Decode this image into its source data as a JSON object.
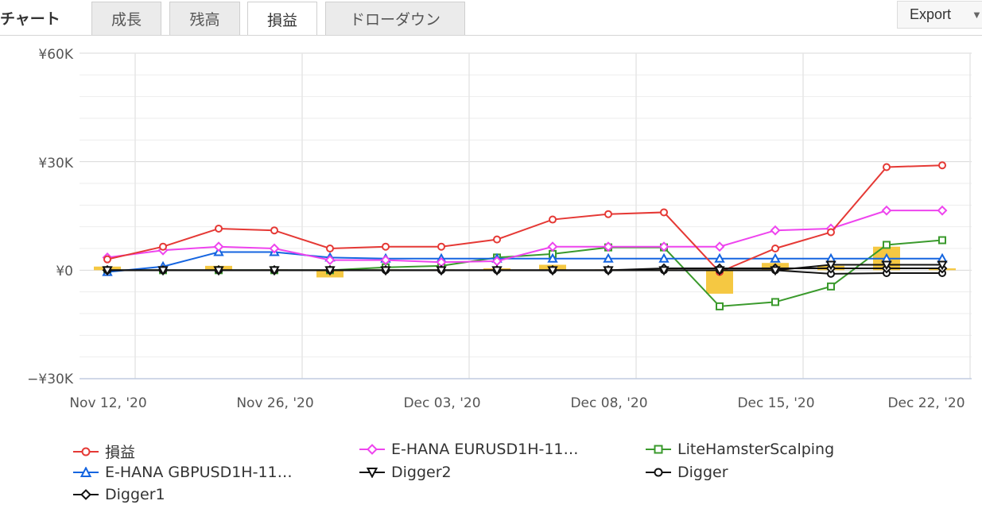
{
  "header": {
    "title": "チャート",
    "tabs": [
      {
        "label": "成長",
        "active": false
      },
      {
        "label": "残高",
        "active": false
      },
      {
        "label": "損益",
        "active": true
      },
      {
        "label": "ドローダウン",
        "active": false
      }
    ],
    "export_label": "Export"
  },
  "chart_data": {
    "type": "line",
    "y_tick_labels": [
      "¥60K",
      "¥30K",
      "¥0",
      "−¥30K"
    ],
    "y_ticks": [
      60000,
      30000,
      0,
      -30000
    ],
    "ylim": [
      -30000,
      60000
    ],
    "x_tick_labels": [
      "Nov 12, '20",
      "Nov 26, '20",
      "Dec 03, '20",
      "Dec 08, '20",
      "Dec 15, '20",
      "Dec 22, '20"
    ],
    "grid": true,
    "legend_position": "bottom",
    "bars": {
      "color": "#f5c842",
      "values": [
        1000,
        0,
        1200,
        0,
        -2000,
        0,
        0,
        500,
        1500,
        0,
        0,
        -6500,
        2000,
        1200,
        6500,
        500
      ]
    },
    "series": [
      {
        "name": "損益",
        "color": "#e53935",
        "marker": "circle",
        "values": [
          3000,
          6500,
          11500,
          11000,
          6000,
          6500,
          6500,
          8500,
          14000,
          15500,
          16000,
          -500,
          6000,
          10500,
          28500,
          29000
        ]
      },
      {
        "name": "E-HANA EURUSD1H-11…",
        "color": "#ee44ee",
        "marker": "diamond",
        "values": [
          3500,
          5500,
          6500,
          6000,
          2800,
          2800,
          2200,
          2500,
          6500,
          6500,
          6500,
          6500,
          11000,
          11500,
          16500,
          16500
        ]
      },
      {
        "name": "LiteHamsterScalping",
        "color": "#3a9a2c",
        "marker": "square",
        "values": [
          0,
          0,
          0,
          0,
          0,
          800,
          1200,
          3500,
          4500,
          6300,
          6300,
          -10000,
          -8800,
          -4500,
          7000,
          8300
        ]
      },
      {
        "name": "E-HANA GBPUSD1H-11…",
        "color": "#1565e0",
        "marker": "triangle",
        "values": [
          -500,
          1000,
          5000,
          5000,
          3500,
          3200,
          3200,
          3200,
          3200,
          3200,
          3200,
          3200,
          3200,
          3200,
          3200,
          3200
        ]
      },
      {
        "name": "Digger2",
        "color": "#111111",
        "marker": "triangle-down",
        "values": [
          0,
          0,
          0,
          0,
          0,
          0,
          0,
          0,
          0,
          0,
          0,
          0,
          0,
          1500,
          1500,
          1500
        ]
      },
      {
        "name": "Digger",
        "color": "#111111",
        "marker": "circle",
        "values": [
          0,
          0,
          0,
          0,
          0,
          0,
          0,
          0,
          0,
          0,
          0,
          0,
          0,
          -1000,
          -800,
          -800
        ]
      },
      {
        "name": "Digger1",
        "color": "#111111",
        "marker": "diamond",
        "values": [
          0,
          0,
          0,
          0,
          0,
          0,
          0,
          0,
          0,
          0,
          500,
          500,
          500,
          500,
          500,
          500
        ]
      }
    ]
  }
}
